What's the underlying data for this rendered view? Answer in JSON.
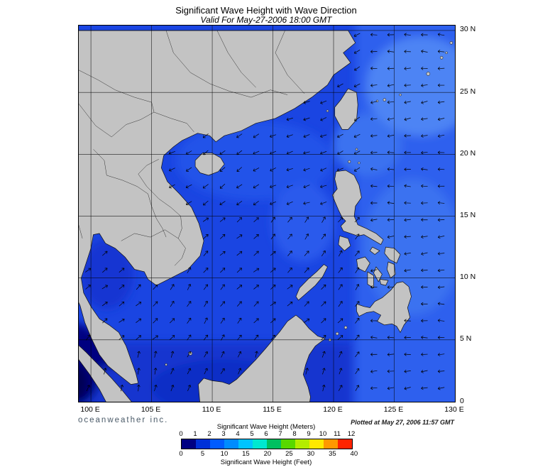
{
  "title": "Significant Wave Height with Wave Direction",
  "subtitle": "Valid For May-27-2006 18:00 GMT",
  "branding": "oceanweather inc.",
  "plotted_at": "Plotted at May 27, 2006 11:57 GMT",
  "axes": {
    "lat_labels": [
      "30 N",
      "25 N",
      "20 N",
      "15 N",
      "10 N",
      "5 N",
      "0"
    ],
    "lon_labels": [
      "100 E",
      "105 E",
      "110 E",
      "115 E",
      "120 E",
      "125 E",
      "130 E"
    ]
  },
  "legend": {
    "meters_label": "Significant Wave Height (Meters)",
    "feet_label": "Significant Wave Height (Feet)",
    "meters_ticks": [
      "0",
      "1",
      "2",
      "3",
      "4",
      "5",
      "6",
      "7",
      "8",
      "9",
      "10",
      "11",
      "12"
    ],
    "feet_ticks": [
      "0",
      "5",
      "10",
      "15",
      "20",
      "25",
      "30",
      "35",
      "40"
    ],
    "colors": [
      "#000082",
      "#0030d8",
      "#005cff",
      "#008cff",
      "#00c4ff",
      "#00e8d0",
      "#00c060",
      "#58d800",
      "#b4ec00",
      "#ffe800",
      "#ff9800",
      "#ff2400"
    ]
  },
  "map": {
    "land_color": "#c3c3c3",
    "coast_color": "#141414",
    "grid_color": "#000000",
    "arrow_color": "#000000",
    "ocean_shades": {
      "base": "#1a45e2",
      "east": "#2d60ee",
      "pac_light": "#4d84f4",
      "pac_mid": "#3b72f0",
      "north_scs": "#2353e9",
      "west_luzon": "#2a5aec",
      "south": "#1236cf",
      "java": "#0d2ec6",
      "gulf_thailand": "#1536d2",
      "malacca": "#000080",
      "malacca_deep": "#000055"
    }
  }
}
